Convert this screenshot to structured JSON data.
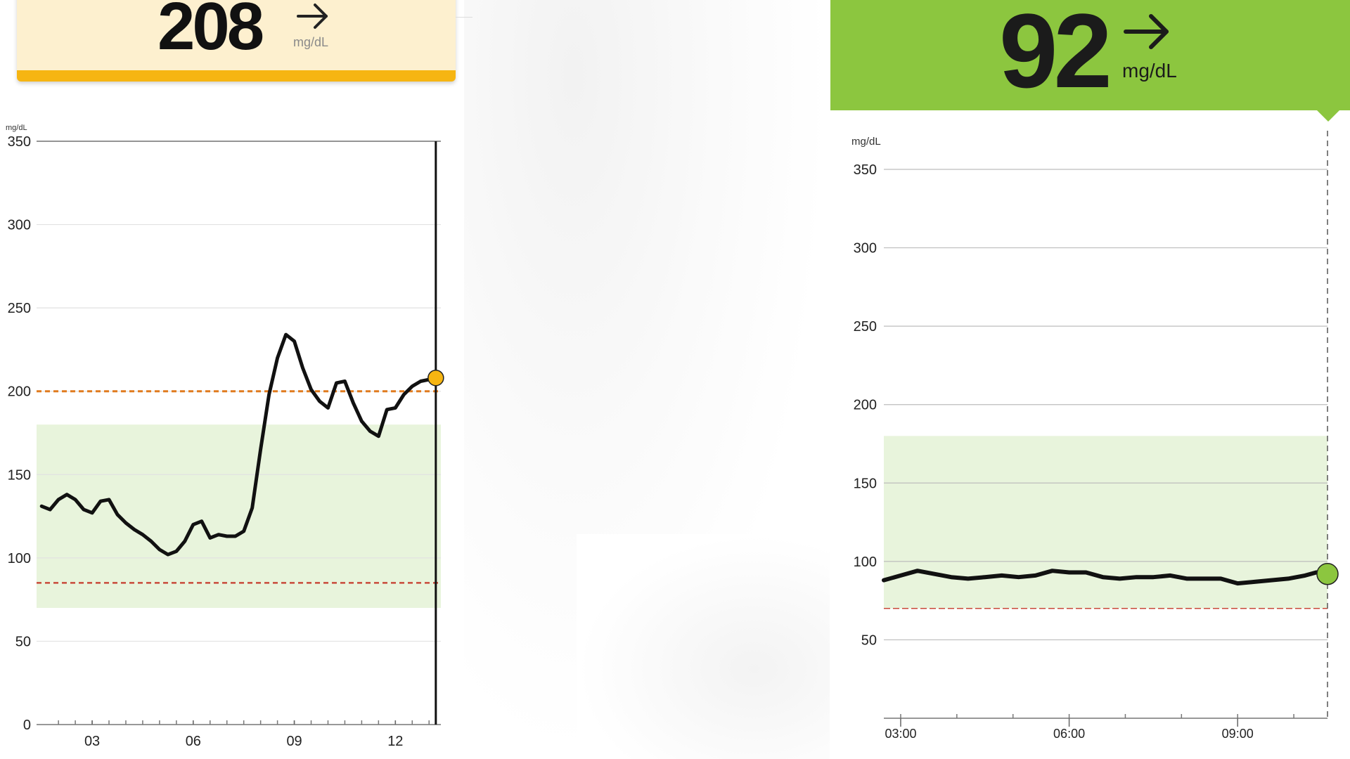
{
  "left_panel": {
    "reading": {
      "value": "208",
      "unit": "mg/dL",
      "trend_icon": "arrow-right-icon",
      "color": "#f6b512",
      "background": "#fdf0cf"
    }
  },
  "right_panel": {
    "reading": {
      "value": "92",
      "unit": "mg/dL",
      "trend_icon": "arrow-right-icon",
      "color": "#8cc63f"
    }
  },
  "chart_data": [
    {
      "type": "line",
      "ylabel": "mg/dL",
      "ylim": [
        0,
        350
      ],
      "yticks": [
        0,
        50,
        100,
        150,
        200,
        250,
        300,
        350
      ],
      "xlim": [
        1.35,
        13.35
      ],
      "xticks": [
        3,
        6,
        9,
        12
      ],
      "xtick_labels": [
        "03",
        "06",
        "09",
        "12"
      ],
      "target_range": [
        70,
        180
      ],
      "high_threshold": 200,
      "low_threshold": 85,
      "grid": true,
      "line_color": "#111111",
      "marker_color": "#f6b512",
      "series": [
        {
          "x": [
            1.5,
            1.75,
            2.0,
            2.25,
            2.5,
            2.75,
            3.0,
            3.25,
            3.5,
            3.75,
            4.0,
            4.25,
            4.5,
            4.75,
            5.0,
            5.25,
            5.5,
            5.75,
            6.0,
            6.25,
            6.5,
            6.75,
            7.0,
            7.25,
            7.5,
            7.75,
            8.0,
            8.25,
            8.5,
            8.75,
            9.0,
            9.25,
            9.5,
            9.75,
            10.0,
            10.25,
            10.5,
            10.75,
            11.0,
            11.25,
            11.5,
            11.75,
            12.0,
            12.25,
            12.5,
            12.75,
            13.0,
            13.2
          ],
          "y": [
            131,
            129,
            135,
            138,
            135,
            129,
            127,
            134,
            135,
            126,
            121,
            117,
            114,
            110,
            105,
            102,
            104,
            110,
            120,
            122,
            112,
            114,
            113,
            113,
            116,
            130,
            165,
            198,
            220,
            234,
            230,
            214,
            201,
            194,
            190,
            205,
            206,
            193,
            182,
            176,
            173,
            189,
            190,
            198,
            203,
            206,
            207,
            208
          ]
        }
      ],
      "current_point": {
        "x": 13.2,
        "y": 208
      }
    },
    {
      "type": "line",
      "ylabel": "mg/dL",
      "ylim": [
        0,
        350
      ],
      "yticks": [
        50,
        100,
        150,
        200,
        250,
        300,
        350
      ],
      "xlim": [
        2.7,
        10.6
      ],
      "xticks": [
        3,
        6,
        9
      ],
      "xtick_labels": [
        "03:00",
        "06:00",
        "09:00"
      ],
      "minor_xticks": [
        3,
        4,
        5,
        6,
        7,
        8,
        9,
        10
      ],
      "target_range": [
        70,
        180
      ],
      "low_threshold": 70,
      "grid": true,
      "line_color": "#111111",
      "marker_color": "#8cc63f",
      "series": [
        {
          "x": [
            2.7,
            3.0,
            3.3,
            3.6,
            3.9,
            4.2,
            4.5,
            4.8,
            5.1,
            5.4,
            5.7,
            6.0,
            6.3,
            6.6,
            6.9,
            7.2,
            7.5,
            7.8,
            8.1,
            8.4,
            8.7,
            9.0,
            9.3,
            9.6,
            9.9,
            10.2,
            10.4,
            10.6
          ],
          "y": [
            88,
            91,
            94,
            92,
            90,
            89,
            90,
            91,
            90,
            91,
            94,
            93,
            93,
            90,
            89,
            90,
            90,
            91,
            89,
            89,
            89,
            86,
            87,
            88,
            89,
            91,
            93,
            92
          ]
        }
      ],
      "current_point": {
        "x": 10.6,
        "y": 92
      }
    }
  ]
}
